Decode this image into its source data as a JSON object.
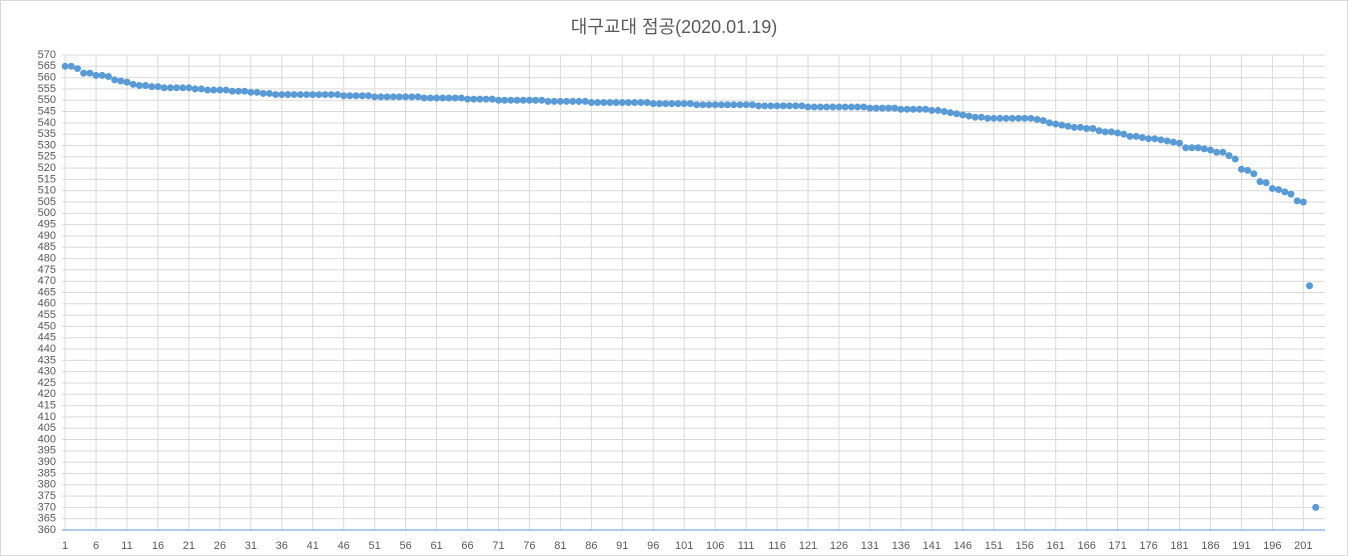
{
  "chart_data": {
    "type": "scatter",
    "title": "대구교대 점공(2020.01.19)",
    "color": "#5b9bd5",
    "grid": true,
    "xlim": [
      0.5,
      204.5
    ],
    "xticks": [
      1,
      6,
      11,
      16,
      21,
      26,
      31,
      36,
      41,
      46,
      51,
      56,
      61,
      66,
      71,
      76,
      81,
      86,
      91,
      96,
      101,
      106,
      111,
      116,
      121,
      126,
      131,
      136,
      141,
      146,
      151,
      156,
      161,
      166,
      171,
      176,
      181,
      186,
      191,
      196,
      201
    ],
    "ylim": [
      360,
      570
    ],
    "yticks": [
      360,
      365,
      370,
      375,
      380,
      385,
      390,
      395,
      400,
      405,
      410,
      415,
      420,
      425,
      430,
      435,
      440,
      445,
      450,
      455,
      460,
      465,
      470,
      475,
      480,
      485,
      490,
      495,
      500,
      505,
      510,
      515,
      520,
      525,
      530,
      535,
      540,
      545,
      550,
      555,
      560,
      565,
      570
    ],
    "x": [
      1,
      2,
      3,
      4,
      5,
      6,
      7,
      8,
      9,
      10,
      11,
      12,
      13,
      14,
      15,
      16,
      17,
      18,
      19,
      20,
      21,
      22,
      23,
      24,
      25,
      26,
      27,
      28,
      29,
      30,
      31,
      32,
      33,
      34,
      35,
      36,
      37,
      38,
      39,
      40,
      41,
      42,
      43,
      44,
      45,
      46,
      47,
      48,
      49,
      50,
      51,
      52,
      53,
      54,
      55,
      56,
      57,
      58,
      59,
      60,
      61,
      62,
      63,
      64,
      65,
      66,
      67,
      68,
      69,
      70,
      71,
      72,
      73,
      74,
      75,
      76,
      77,
      78,
      79,
      80,
      81,
      82,
      83,
      84,
      85,
      86,
      87,
      88,
      89,
      90,
      91,
      92,
      93,
      94,
      95,
      96,
      97,
      98,
      99,
      100,
      101,
      102,
      103,
      104,
      105,
      106,
      107,
      108,
      109,
      110,
      111,
      112,
      113,
      114,
      115,
      116,
      117,
      118,
      119,
      120,
      121,
      122,
      123,
      124,
      125,
      126,
      127,
      128,
      129,
      130,
      131,
      132,
      133,
      134,
      135,
      136,
      137,
      138,
      139,
      140,
      141,
      142,
      143,
      144,
      145,
      146,
      147,
      148,
      149,
      150,
      151,
      152,
      153,
      154,
      155,
      156,
      157,
      158,
      159,
      160,
      161,
      162,
      163,
      164,
      165,
      166,
      167,
      168,
      169,
      170,
      171,
      172,
      173,
      174,
      175,
      176,
      177,
      178,
      179,
      180,
      181,
      182,
      183,
      184,
      185,
      186,
      187,
      188,
      189,
      190,
      191,
      192,
      193,
      194,
      195,
      196,
      197,
      198,
      199,
      200,
      201,
      202,
      203
    ],
    "values": [
      565,
      565,
      564,
      562,
      562,
      561,
      561,
      560.5,
      559,
      558.5,
      558,
      557,
      556.5,
      556.5,
      556,
      556,
      555.5,
      555.5,
      555.5,
      555.5,
      555.5,
      555,
      555,
      554.5,
      554.5,
      554.5,
      554.5,
      554,
      554,
      554,
      553.5,
      553.5,
      553,
      553,
      552.5,
      552.5,
      552.5,
      552.5,
      552.5,
      552.5,
      552.5,
      552.5,
      552.5,
      552.5,
      552.5,
      552,
      552,
      552,
      552,
      552,
      551.5,
      551.5,
      551.5,
      551.5,
      551.5,
      551.5,
      551.5,
      551.5,
      551,
      551,
      551,
      551,
      551,
      551,
      551,
      550.5,
      550.5,
      550.5,
      550.5,
      550.5,
      550,
      550,
      550,
      550,
      550,
      550,
      550,
      550,
      549.5,
      549.5,
      549.5,
      549.5,
      549.5,
      549.5,
      549.5,
      549,
      549,
      549,
      549,
      549,
      549,
      549,
      549,
      549,
      549,
      548.5,
      548.5,
      548.5,
      548.5,
      548.5,
      548.5,
      548.5,
      548,
      548,
      548,
      548,
      548,
      548,
      548,
      548,
      548,
      548,
      547.5,
      547.5,
      547.5,
      547.5,
      547.5,
      547.5,
      547.5,
      547.5,
      547,
      547,
      547,
      547,
      547,
      547,
      547,
      547,
      547,
      547,
      546.5,
      546.5,
      546.5,
      546.5,
      546.5,
      546,
      546,
      546,
      546,
      546,
      545.5,
      545.5,
      545,
      544.5,
      544,
      543.5,
      543,
      542.5,
      542.5,
      542,
      542,
      542,
      542,
      542,
      542,
      542,
      542,
      541.5,
      541,
      540,
      539.5,
      539,
      538.5,
      538,
      538,
      537.5,
      537.5,
      536.5,
      536,
      536,
      535.5,
      535,
      534,
      534,
      533.5,
      533,
      533,
      532.5,
      532,
      531.5,
      531,
      529,
      529,
      529,
      528.5,
      528,
      527,
      527,
      525.5,
      524,
      519.5,
      519,
      517.5,
      514,
      513.5,
      511,
      510.5,
      509.5,
      508.5,
      505.5,
      505,
      468,
      370
    ]
  }
}
